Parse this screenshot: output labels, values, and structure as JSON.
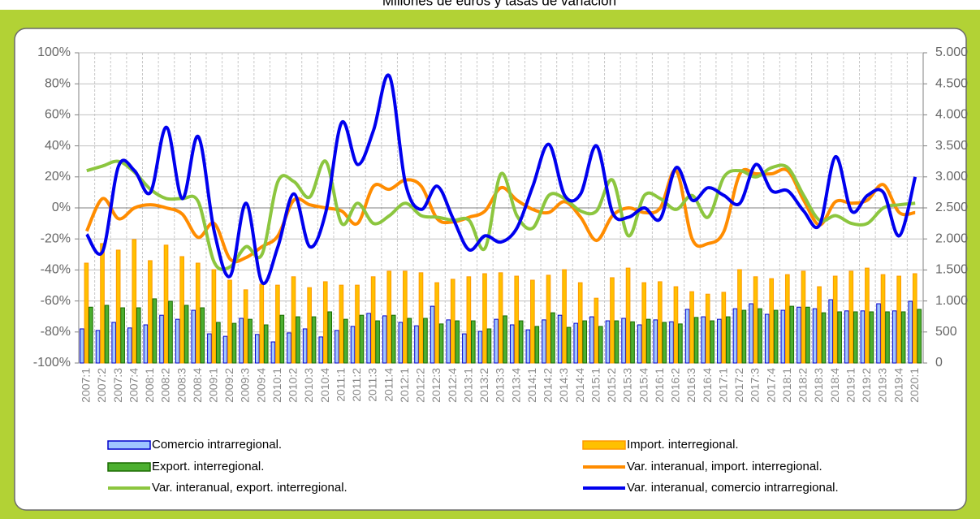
{
  "chart_data": {
    "type": "bar_line",
    "title": "Millones de euros y tasas de variación",
    "categories": [
      "2007:1",
      "2007:2",
      "2007:3",
      "2007:4",
      "2008:1",
      "2008:2",
      "2008:3",
      "2008:4",
      "2009:1",
      "2009:2",
      "2009:3",
      "2009:4",
      "2010:1",
      "2010:2",
      "2010:3",
      "2010:4",
      "2011:1",
      "2011:2",
      "2011:3",
      "2011:4",
      "2012:1",
      "2012:2",
      "2012:3",
      "2012:4",
      "2013:1",
      "2013:2",
      "2013:3",
      "2013:4",
      "2014:1",
      "2014:2",
      "2014:3",
      "2014:4",
      "2015:1",
      "2015:2",
      "2015:3",
      "2015:4",
      "2016:1",
      "2016:2",
      "2016:3",
      "2016:4",
      "2017:1",
      "2017:2",
      "2017:3",
      "2017:4",
      "2018:1",
      "2018:2",
      "2018:3",
      "2018:4",
      "2019:1",
      "2019:2",
      "2019:3",
      "2019:4",
      "2020:1"
    ],
    "ylim": [
      -100,
      100
    ],
    "yticks": [
      {
        "value": -100,
        "label": "-100%"
      },
      {
        "value": -80,
        "label": "-80%"
      },
      {
        "value": -60,
        "label": "-60%"
      },
      {
        "value": -40,
        "label": "-40%"
      },
      {
        "value": -20,
        "label": "-20%"
      },
      {
        "value": 0,
        "label": "0%"
      },
      {
        "value": 20,
        "label": "20%"
      },
      {
        "value": 40,
        "label": "40%"
      },
      {
        "value": 60,
        "label": "60%"
      },
      {
        "value": 80,
        "label": "80%"
      },
      {
        "value": 100,
        "label": "100%"
      }
    ],
    "y2lim": [
      0,
      5000
    ],
    "y2ticks": [
      0,
      500,
      {
        "value": 1000,
        "label": "1.000"
      },
      {
        "value": 1500,
        "label": "1.500"
      },
      {
        "value": 2000,
        "label": "2.000"
      },
      {
        "value": 2500,
        "label": "2.500"
      },
      {
        "value": 3000,
        "label": "3.000"
      },
      {
        "value": 3500,
        "label": "3.500"
      },
      {
        "value": 4000,
        "label": "4.000"
      },
      {
        "value": 4500,
        "label": "4.500"
      },
      {
        "value": 5000,
        "label": "5.000"
      }
    ],
    "grid": true,
    "legend": "bottom",
    "series": [
      {
        "name": "Comercio intrarregional.",
        "type": "bar",
        "axis": "y2",
        "color": "#9fc5ff",
        "edge_color": "#0000cc",
        "values": [
          550,
          525,
          655,
          565,
          615,
          770,
          705,
          850,
          470,
          430,
          720,
          460,
          340,
          485,
          550,
          420,
          525,
          590,
          800,
          760,
          655,
          600,
          915,
          695,
          470,
          510,
          705,
          615,
          535,
          695,
          770,
          640,
          745,
          680,
          720,
          615,
          695,
          665,
          865,
          745,
          705,
          875,
          955,
          785,
          850,
          900,
          875,
          1020,
          840,
          840,
          955,
          840,
          995
        ]
      },
      {
        "name": "Import. interregional.",
        "type": "bar",
        "axis": "y2",
        "color": "#ffc000",
        "edge_color": "#ff9900",
        "values": [
          1610,
          1925,
          1820,
          1990,
          1650,
          1900,
          1715,
          1610,
          1505,
          1335,
          1180,
          1270,
          1255,
          1390,
          1215,
          1310,
          1255,
          1255,
          1390,
          1480,
          1480,
          1455,
          1295,
          1350,
          1390,
          1440,
          1455,
          1400,
          1335,
          1415,
          1505,
          1295,
          1045,
          1375,
          1530,
          1295,
          1310,
          1230,
          1150,
          1110,
          1140,
          1505,
          1390,
          1360,
          1425,
          1480,
          1230,
          1400,
          1480,
          1530,
          1425,
          1400,
          1440
        ]
      },
      {
        "name": "Export. interregional.",
        "type": "bar",
        "axis": "y2",
        "color": "#4caf30",
        "edge_color": "#1a6b00",
        "values": [
          900,
          930,
          890,
          890,
          1035,
          995,
          930,
          890,
          655,
          640,
          705,
          615,
          770,
          745,
          745,
          825,
          705,
          770,
          680,
          770,
          720,
          720,
          630,
          680,
          680,
          550,
          760,
          680,
          590,
          810,
          575,
          680,
          590,
          680,
          665,
          705,
          655,
          630,
          735,
          680,
          745,
          850,
          875,
          850,
          915,
          900,
          810,
          825,
          825,
          825,
          825,
          825,
          865
        ]
      },
      {
        "name": "Var. interanual, import. interregional.",
        "type": "line",
        "axis": "y",
        "color": "#ff8c00",
        "values": [
          -15,
          6,
          -7,
          0,
          2,
          0,
          -4,
          -19,
          -10,
          -33,
          -32,
          -25,
          -18,
          5,
          2,
          0,
          -2,
          -10,
          14,
          12,
          18,
          14,
          -7,
          -9,
          -6,
          -2,
          13,
          5,
          -1,
          -3,
          4,
          -6,
          -21,
          -5,
          0,
          -3,
          0,
          24,
          -20,
          -23,
          -15,
          22,
          22,
          22,
          24,
          5,
          -11,
          4,
          3,
          5,
          15,
          -3,
          -3
        ]
      },
      {
        "name": "Var. interanual, export. interregional.",
        "type": "line",
        "axis": "y",
        "color": "#8cc63f",
        "values": [
          24,
          27,
          30,
          23,
          12,
          6,
          6,
          4,
          -35,
          -38,
          -25,
          -30,
          17,
          17,
          7,
          30,
          -10,
          3,
          -10,
          -5,
          3,
          -5,
          -6,
          -8,
          -8,
          -26,
          22,
          -5,
          -13,
          8,
          6,
          -2,
          -2,
          18,
          -18,
          8,
          6,
          -1,
          8,
          -6,
          20,
          24,
          20,
          26,
          26,
          8,
          -8,
          -5,
          -10,
          -10,
          0,
          2,
          3
        ]
      },
      {
        "name": "Var. interanual, comercio intrarregional.",
        "type": "line",
        "axis": "y",
        "color": "#0000ee",
        "values": [
          -17,
          -28,
          27,
          24,
          10,
          52,
          6,
          46,
          -15,
          -44,
          3,
          -48,
          -25,
          9,
          -25,
          -3,
          55,
          28,
          50,
          85,
          16,
          -1,
          14,
          -7,
          -27,
          -18,
          -22,
          -13,
          14,
          41,
          8,
          9,
          40,
          -3,
          -6,
          0,
          -7,
          26,
          5,
          13,
          8,
          3,
          28,
          11,
          11,
          -2,
          -11,
          33,
          -2,
          8,
          10,
          -18,
          20
        ]
      }
    ]
  }
}
